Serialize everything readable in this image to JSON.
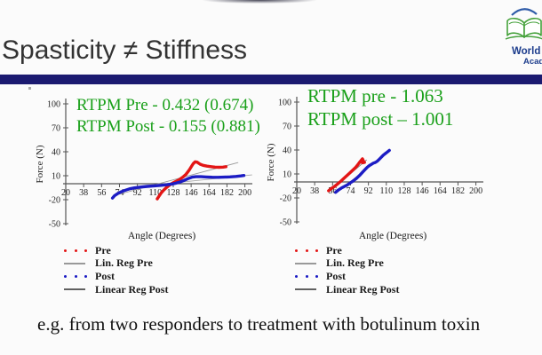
{
  "header": {
    "title": "Spasticity ≠ Stiffness",
    "divider_color": "#1b1a70"
  },
  "logo": {
    "line1": "World",
    "line2": "Acad",
    "book_color": "#44a13a",
    "arc_color": "#2e5ba8",
    "text_color": "#1c3c8c"
  },
  "footer": {
    "caption": "e.g. from two responders to treatment with botulinum toxin"
  },
  "colors": {
    "pre_red": "#e31515",
    "post_blue": "#1c1cc4",
    "reg_pre_gray": "#999999",
    "reg_post_dark": "#606060",
    "annotation_green": "#1aa01a",
    "axis": "#555555"
  },
  "chart_data": [
    {
      "type": "line",
      "side": "left",
      "annotations": [
        "RTPM Pre - 0.432 (0.674)",
        "RTPM Post - 0.155 (0.881)"
      ],
      "annotation_color": "#1aa01a",
      "xlabel": "Angle (Degrees)",
      "ylabel": "Force (N)",
      "xlim": [
        20,
        200
      ],
      "ylim": [
        -50,
        100
      ],
      "xticks": [
        20,
        38,
        56,
        74,
        92,
        110,
        128,
        146,
        164,
        182,
        200
      ],
      "yticks": [
        100,
        70,
        40,
        10,
        -20,
        -50
      ],
      "legend": [
        {
          "label": "Pre",
          "style": "dotted",
          "color": "#e31515"
        },
        {
          "label": "Lin. Reg Pre",
          "style": "solid",
          "color": "#999999"
        },
        {
          "label": "Post",
          "style": "dotted",
          "color": "#1c1cc4"
        },
        {
          "label": "Linear Reg Post",
          "style": "solid",
          "color": "#606060"
        }
      ],
      "series": [
        {
          "name": "Lin. Reg Pre",
          "role": "regression",
          "color": "#999999",
          "points": [
            [
              68,
              -15
            ],
            [
              193,
              26.5
            ]
          ]
        },
        {
          "name": "Linear Reg Post",
          "role": "regression",
          "color": "#a8a8a8",
          "points": [
            [
              112,
              -1
            ],
            [
              207,
              11
            ]
          ]
        },
        {
          "name": "Pre",
          "role": "data",
          "color": "#e31515",
          "points": [
            [
              112,
              -19
            ],
            [
              114,
              -15
            ],
            [
              116,
              -11.5
            ],
            [
              118,
              -8.5
            ],
            [
              121,
              -5
            ],
            [
              124,
              -2
            ],
            [
              127,
              0.5
            ],
            [
              130,
              2.5
            ],
            [
              134,
              5
            ],
            [
              138,
              8.5
            ],
            [
              141,
              12
            ],
            [
              144,
              17
            ],
            [
              146,
              21
            ],
            [
              148,
              25
            ],
            [
              150,
              27.5
            ],
            [
              152,
              27
            ],
            [
              155,
              24.5
            ],
            [
              158,
              23
            ],
            [
              162,
              22
            ],
            [
              166,
              21.3
            ],
            [
              170,
              20.8
            ],
            [
              174,
              20.5
            ],
            [
              178,
              20.8
            ],
            [
              181,
              21.3
            ]
          ]
        },
        {
          "name": "Post",
          "role": "data",
          "color": "#1c1cc4",
          "points": [
            [
              67,
              -18
            ],
            [
              69,
              -15
            ],
            [
              72,
              -12.5
            ],
            [
              75,
              -10.5
            ],
            [
              79,
              -8.5
            ],
            [
              84,
              -6.5
            ],
            [
              89,
              -5.2
            ],
            [
              95,
              -4.2
            ],
            [
              102,
              -3.3
            ],
            [
              109,
              -2.7
            ],
            [
              116,
              -2
            ],
            [
              122,
              -1.2
            ],
            [
              127,
              -0.3
            ],
            [
              131,
              0.8
            ],
            [
              135,
              2.2
            ],
            [
              139,
              4.2
            ],
            [
              143,
              6.5
            ],
            [
              147,
              8.2
            ],
            [
              151,
              8.8
            ],
            [
              156,
              8.8
            ],
            [
              161,
              8.4
            ],
            [
              167,
              8.1
            ],
            [
              173,
              8
            ],
            [
              179,
              8.2
            ],
            [
              185,
              8.6
            ],
            [
              191,
              9.1
            ],
            [
              196,
              9.8
            ],
            [
              199,
              10.3
            ]
          ]
        }
      ]
    },
    {
      "type": "line",
      "side": "right",
      "annotations": [
        "RTPM pre - 1.063",
        "RTPM post – 1.001"
      ],
      "annotation_color": "#1aa01a",
      "xlabel": "Angle (Degrees)",
      "ylabel": "Force (N)",
      "xlim": [
        20,
        200
      ],
      "ylim": [
        -50,
        100
      ],
      "xticks": [
        20,
        38,
        56,
        74,
        92,
        110,
        128,
        146,
        164,
        182,
        200
      ],
      "yticks": [
        100,
        70,
        40,
        10,
        -20,
        -50
      ],
      "legend": [
        {
          "label": "Pre",
          "style": "dotted",
          "color": "#e31515"
        },
        {
          "label": "Lin. Reg Pre",
          "style": "solid",
          "color": "#999999"
        },
        {
          "label": "Post",
          "style": "dotted",
          "color": "#1c1cc4"
        },
        {
          "label": "Linear Reg Post",
          "style": "solid",
          "color": "#606060"
        }
      ],
      "series": [
        {
          "name": "Lin. Reg Pre",
          "role": "regression",
          "color": "#777777",
          "points": [
            [
              53,
              -12
            ],
            [
              90,
              27.5
            ]
          ]
        },
        {
          "name": "Linear Reg Post",
          "role": "regression",
          "color": "#777777",
          "points": [
            [
              60,
              -13.5
            ],
            [
              101,
              27.5
            ]
          ]
        },
        {
          "name": "Pre",
          "role": "data",
          "color": "#e31515",
          "points": [
            [
              52,
              -11
            ],
            [
              55,
              -8
            ],
            [
              58,
              -5.5
            ],
            [
              61,
              -2.5
            ],
            [
              64,
              0.5
            ],
            [
              67,
              4
            ],
            [
              70,
              7.5
            ],
            [
              73,
              11
            ],
            [
              76,
              14.5
            ],
            [
              79,
              18
            ],
            [
              81,
              21
            ],
            [
              83,
              24.5
            ],
            [
              85,
              27.5
            ],
            [
              86,
              29
            ],
            [
              87,
              26.5
            ],
            [
              86,
              24
            ],
            [
              88,
              24.5
            ]
          ]
        },
        {
          "name": "Post",
          "role": "data",
          "color": "#1c1cc4",
          "points": [
            [
              59,
              -13
            ],
            [
              62,
              -10
            ],
            [
              65,
              -7.5
            ],
            [
              68,
              -5.5
            ],
            [
              71,
              -3.5
            ],
            [
              74,
              -1
            ],
            [
              77,
              1.5
            ],
            [
              80,
              4.5
            ],
            [
              83,
              8
            ],
            [
              86,
              12
            ],
            [
              89,
              16
            ],
            [
              91,
              18.5
            ],
            [
              93,
              20.5
            ],
            [
              95,
              22
            ],
            [
              97,
              23.5
            ],
            [
              99,
              24.5
            ],
            [
              101,
              26
            ],
            [
              103,
              28.5
            ],
            [
              105,
              31
            ],
            [
              107,
              33.5
            ],
            [
              109,
              35.5
            ],
            [
              111,
              37.5
            ],
            [
              113,
              39.5
            ]
          ]
        }
      ]
    }
  ]
}
